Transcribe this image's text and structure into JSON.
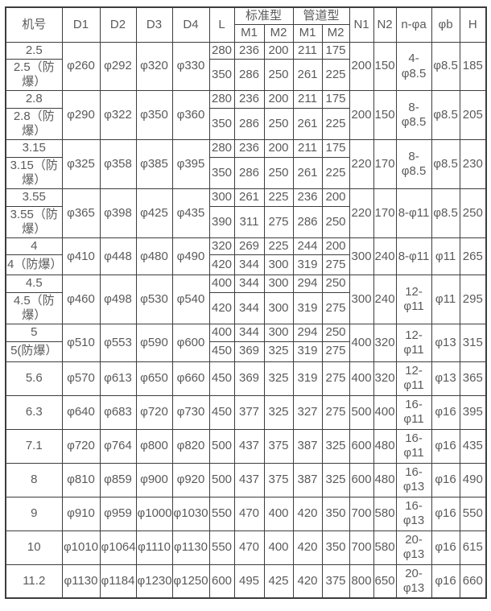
{
  "colors": {
    "border": "#3d3d3d",
    "text": "#5a5a5a",
    "background": "#ffffff"
  },
  "table": {
    "header": {
      "machine_no": "机号",
      "d1": "D1",
      "d2": "D2",
      "d3": "D3",
      "d4": "D4",
      "l": "L",
      "group_standard": "标准型",
      "group_pipe": "管道型",
      "m1": "M1",
      "m2": "M2",
      "n1": "N1",
      "n2": "N2",
      "n_phia": "n-φa",
      "phib": "φb",
      "h": "H"
    },
    "blocks": [
      {
        "type": "pair",
        "labels": [
          "2.5",
          "2.5（防爆）"
        ],
        "d": [
          "φ260",
          "φ292",
          "φ320",
          "φ330"
        ],
        "rows": [
          [
            "280",
            "236",
            "200",
            "211",
            "175"
          ],
          [
            "350",
            "286",
            "250",
            "261",
            "225"
          ]
        ],
        "n1": "200",
        "n2": "150",
        "na": "4-\nφ8.5",
        "phib": "φ8.5",
        "h": "185"
      },
      {
        "type": "pair",
        "labels": [
          "2.8",
          "2.8（防爆）"
        ],
        "d": [
          "φ290",
          "φ322",
          "φ350",
          "φ360"
        ],
        "rows": [
          [
            "280",
            "236",
            "200",
            "211",
            "175"
          ],
          [
            "350",
            "286",
            "250",
            "261",
            "225"
          ]
        ],
        "n1": "200",
        "n2": "150",
        "na": "8-\nφ8.5",
        "phib": "φ8.5",
        "h": "205"
      },
      {
        "type": "pair",
        "labels": [
          "3.15",
          "3.15（防爆）"
        ],
        "d": [
          "φ325",
          "φ358",
          "φ385",
          "φ395"
        ],
        "rows": [
          [
            "280",
            "236",
            "200",
            "211",
            "175"
          ],
          [
            "350",
            "286",
            "250",
            "261",
            "225"
          ]
        ],
        "n1": "220",
        "n2": "170",
        "na": "8-\nφ8.5",
        "phib": "φ8.5",
        "h": "230"
      },
      {
        "type": "pair",
        "labels": [
          "3.55",
          "3.55（防爆）"
        ],
        "d": [
          "φ365",
          "φ398",
          "φ425",
          "φ435"
        ],
        "rows": [
          [
            "300",
            "261",
            "225",
            "236",
            "200"
          ],
          [
            "390",
            "311",
            "275",
            "286",
            "250"
          ]
        ],
        "n1": "220",
        "n2": "170",
        "na": "8-φ11",
        "phib": "φ8.5",
        "h": "250"
      },
      {
        "type": "pair",
        "labels": [
          "4",
          "4（防爆）"
        ],
        "d": [
          "φ410",
          "φ448",
          "φ480",
          "φ490"
        ],
        "rows": [
          [
            "320",
            "269",
            "225",
            "244",
            "200"
          ],
          [
            "420",
            "344",
            "300",
            "319",
            "275"
          ]
        ],
        "n1": "300",
        "n2": "240",
        "na": "8-φ11",
        "phib": "φ11",
        "h": "265"
      },
      {
        "type": "pair",
        "labels": [
          "4.5",
          "4.5（防爆）"
        ],
        "d": [
          "φ460",
          "φ498",
          "φ530",
          "φ540"
        ],
        "rows": [
          [
            "400",
            "344",
            "300",
            "294",
            "250"
          ],
          [
            "420",
            "344",
            "300",
            "319",
            "275"
          ]
        ],
        "n1": "300",
        "n2": "240",
        "na": "12-\nφ11",
        "phib": "φ11",
        "h": "295"
      },
      {
        "type": "pair",
        "labels": [
          "5",
          "5(防爆）"
        ],
        "d": [
          "φ510",
          "φ553",
          "φ590",
          "φ600"
        ],
        "rows": [
          [
            "400",
            "344",
            "300",
            "294",
            "250"
          ],
          [
            "450",
            "369",
            "325",
            "319",
            "275"
          ]
        ],
        "n1": "400",
        "n2": "320",
        "na": "12-\nφ11",
        "phib": "φ13",
        "h": "315"
      },
      {
        "type": "single",
        "label": "5.6",
        "d": [
          "φ570",
          "φ613",
          "φ650",
          "φ660"
        ],
        "row": [
          "450",
          "369",
          "325",
          "319",
          "275"
        ],
        "n1": "400",
        "n2": "320",
        "na": "12-\nφ11",
        "phib": "φ13",
        "h": "365"
      },
      {
        "type": "single",
        "label": "6.3",
        "d": [
          "φ640",
          "φ683",
          "φ720",
          "φ730"
        ],
        "row": [
          "450",
          "377",
          "325",
          "327",
          "275"
        ],
        "n1": "500",
        "n2": "400",
        "na": "16-\nφ11",
        "phib": "φ16",
        "h": "395"
      },
      {
        "type": "single",
        "label": "7.1",
        "d": [
          "φ720",
          "φ764",
          "φ800",
          "φ820"
        ],
        "row": [
          "500",
          "437",
          "375",
          "387",
          "325"
        ],
        "n1": "600",
        "n2": "480",
        "na": "16-\nφ11",
        "phib": "φ16",
        "h": "435"
      },
      {
        "type": "single",
        "label": "8",
        "d": [
          "φ810",
          "φ859",
          "φ900",
          "φ920"
        ],
        "row": [
          "500",
          "437",
          "375",
          "387",
          "325"
        ],
        "n1": "600",
        "n2": "480",
        "na": "16-\nφ13",
        "phib": "φ16",
        "h": "490"
      },
      {
        "type": "single",
        "label": "9",
        "d": [
          "φ910",
          "φ959",
          "φ1000",
          "φ1030"
        ],
        "row": [
          "550",
          "470",
          "400",
          "420",
          "350"
        ],
        "n1": "700",
        "n2": "580",
        "na": "16-\nφ13",
        "phib": "φ16",
        "h": "550"
      },
      {
        "type": "single",
        "label": "10",
        "d": [
          "φ1010",
          "φ1064",
          "φ1110",
          "φ1130"
        ],
        "row": [
          "550",
          "470",
          "400",
          "420",
          "350"
        ],
        "n1": "700",
        "n2": "580",
        "na": "20-\nφ13",
        "phib": "φ16",
        "h": "615"
      },
      {
        "type": "single",
        "label": "11.2",
        "d": [
          "φ1130",
          "φ1184",
          "φ1230",
          "φ1250"
        ],
        "row": [
          "600",
          "495",
          "425",
          "420",
          "375"
        ],
        "n1": "800",
        "n2": "650",
        "na": "20-\nφ13",
        "phib": "φ16",
        "h": "660"
      }
    ]
  }
}
